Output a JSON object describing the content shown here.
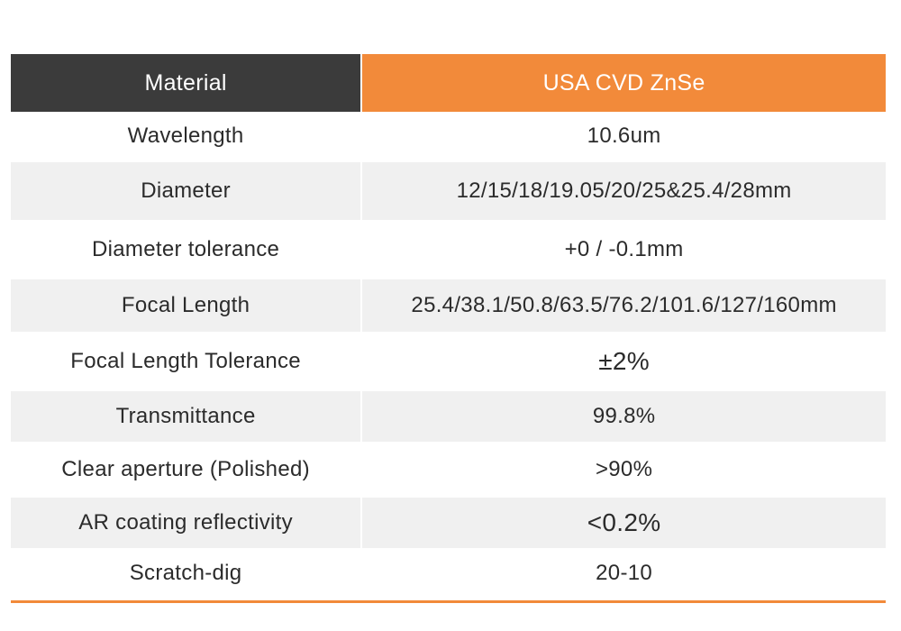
{
  "colors": {
    "accent": "#f28a3a",
    "header_dark": "#3b3b3b",
    "row_alt": "#f0f0f0"
  },
  "table": {
    "header": {
      "label": "Material",
      "value": "USA CVD ZnSe"
    },
    "rows": [
      {
        "label": "Wavelength",
        "value": "10.6um"
      },
      {
        "label": "Diameter",
        "value": "12/15/18/19.05/20/25&25.4/28mm"
      },
      {
        "label": "Diameter tolerance",
        "value": "+0 / -0.1mm"
      },
      {
        "label": "Focal Length",
        "value": "25.4/38.1/50.8/63.5/76.2/101.6/127/160mm"
      },
      {
        "label": "Focal Length Tolerance",
        "value": "±2%"
      },
      {
        "label": "Transmittance",
        "value": "99.8%"
      },
      {
        "label": "Clear aperture (Polished)",
        "value": ">90%"
      },
      {
        "label": "AR coating reflectivity",
        "value": "<0.2%"
      },
      {
        "label": "Scratch-dig",
        "value": "20-10"
      }
    ]
  }
}
